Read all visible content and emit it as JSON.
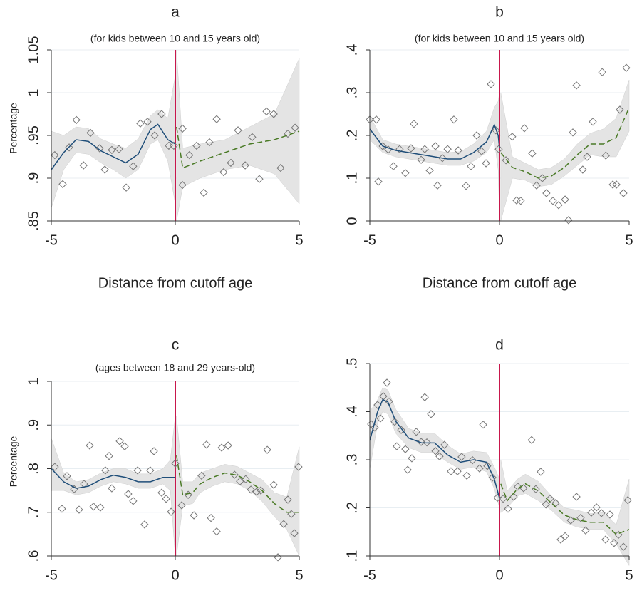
{
  "chart_data": [
    {
      "type": "scatter",
      "title": "a",
      "subtitle": "(for kids between 10 and 15 years old)",
      "ylabel": "Percentage",
      "xlabel": "Distance from cutoff age",
      "xlim": [
        -5,
        5
      ],
      "xticks": [
        -5,
        0,
        5
      ],
      "ylim": [
        0.85,
        1.05
      ],
      "yticks": [
        {
          "value": 0.85,
          "label": ".85"
        },
        {
          "value": 0.9,
          "label": ".9"
        },
        {
          "value": 0.95,
          "label": ".95"
        },
        1,
        1.05
      ],
      "grid": true,
      "cutoff": 0,
      "cutoff_color": "#c8174c",
      "point_color": "#777777",
      "band_color": "#e4e4e4",
      "points": {
        "x": [
          -4.86,
          -4.54,
          -4.28,
          -3.99,
          -3.7,
          -3.42,
          -3.05,
          -2.84,
          -2.56,
          -2.27,
          -1.98,
          -1.7,
          -1.41,
          -1.12,
          -0.83,
          -0.55,
          -0.26,
          -0.06,
          0.29,
          0.29,
          0.57,
          0.86,
          1.15,
          1.38,
          1.67,
          1.95,
          2.24,
          2.53,
          2.82,
          3.1,
          3.39,
          3.68,
          3.97,
          4.25,
          4.54,
          4.83
        ],
        "y": [
          0.927,
          0.893,
          0.936,
          0.968,
          0.915,
          0.953,
          0.935,
          0.91,
          0.933,
          0.934,
          0.889,
          0.914,
          0.964,
          0.966,
          0.95,
          0.975,
          0.938,
          0.938,
          0.958,
          0.892,
          0.927,
          0.938,
          0.883,
          0.942,
          0.969,
          0.907,
          0.918,
          0.956,
          0.915,
          0.948,
          0.899,
          0.978,
          0.975,
          0.912,
          0.952,
          0.959
        ]
      },
      "fits": [
        {
          "color": "#1f4e79",
          "dashed": false,
          "x": [
            -5,
            -4.5,
            -4,
            -3.5,
            -3,
            -2.5,
            -2,
            -1.5,
            -1,
            -0.7,
            -0.3,
            0
          ],
          "y": [
            0.91,
            0.93,
            0.945,
            0.943,
            0.932,
            0.925,
            0.918,
            0.928,
            0.957,
            0.963,
            0.945,
            0.94
          ],
          "lower": [
            0.865,
            0.91,
            0.93,
            0.928,
            0.918,
            0.91,
            0.9,
            0.91,
            0.94,
            0.945,
            0.92,
            0.87
          ],
          "upper": [
            0.955,
            0.95,
            0.96,
            0.958,
            0.946,
            0.94,
            0.935,
            0.946,
            0.973,
            0.98,
            0.97,
            1.02
          ]
        },
        {
          "color": "#4a7a26",
          "dashed": true,
          "x": [
            0.05,
            0.3,
            1,
            2,
            3,
            4,
            5
          ],
          "y": [
            0.96,
            0.912,
            0.92,
            0.93,
            0.94,
            0.945,
            0.955
          ],
          "lower": [
            0.85,
            0.89,
            0.9,
            0.91,
            0.915,
            0.905,
            0.87
          ],
          "upper": [
            1.05,
            0.935,
            0.94,
            0.945,
            0.96,
            0.975,
            1.04
          ]
        }
      ]
    },
    {
      "type": "scatter",
      "title": "b",
      "subtitle": "(for kids between 10 and 15 years old)",
      "xlabel": "Distance from cutoff age",
      "xlim": [
        -5,
        5
      ],
      "xticks": [
        -5,
        0,
        5
      ],
      "ylim": [
        0,
        0.4
      ],
      "yticks": [
        0,
        {
          "value": 0.1,
          "label": ".1"
        },
        {
          "value": 0.2,
          "label": ".2"
        },
        {
          "value": 0.3,
          "label": ".3"
        },
        {
          "value": 0.4,
          "label": ".4"
        }
      ],
      "grid": true,
      "cutoff": 0,
      "cutoff_color": "#c8174c",
      "point_color": "#777777",
      "band_color": "#e4e4e4",
      "points": {
        "x": [
          -5,
          -4.75,
          -4.67,
          -4.5,
          -4.29,
          -4.09,
          -3.85,
          -3.63,
          -3.41,
          -3.3,
          -3.02,
          -2.88,
          -2.69,
          -2.47,
          -2.39,
          -2.2,
          -2,
          -1.76,
          -1.59,
          -1.29,
          -1.1,
          -0.88,
          -0.69,
          -0.52,
          -0.33,
          -0.14,
          -0.03,
          0.25,
          0.49,
          0.66,
          0.82,
          0.96,
          1.26,
          1.43,
          1.65,
          1.81,
          2.06,
          2.28,
          2.53,
          2.66,
          2.83,
          2.97,
          3.21,
          3.38,
          3.6,
          3.96,
          4.1,
          4.37,
          4.51,
          4.64,
          4.78,
          4.89
        ],
        "y": [
          0.237,
          0.237,
          0.092,
          0.175,
          0.167,
          0.128,
          0.168,
          0.112,
          0.17,
          0.227,
          0.143,
          0.168,
          0.118,
          0.175,
          0.083,
          0.147,
          0.168,
          0.237,
          0.165,
          0.082,
          0.128,
          0.2,
          0.163,
          0.135,
          0.32,
          0.212,
          0.168,
          0.142,
          0.197,
          0.048,
          0.047,
          0.217,
          0.158,
          0.083,
          0.1,
          0.065,
          0.047,
          0.037,
          0.05,
          0.002,
          0.207,
          0.317,
          0.12,
          0.15,
          0.232,
          0.348,
          0.153,
          0.085,
          0.085,
          0.26,
          0.065,
          0.358
        ]
      },
      "fits": [
        {
          "color": "#1f4e79",
          "dashed": false,
          "x": [
            -5,
            -4.5,
            -4,
            -3,
            -2,
            -1.5,
            -1,
            -0.5,
            -0.2,
            -0.05,
            0
          ],
          "y": [
            0.215,
            0.175,
            0.165,
            0.155,
            0.145,
            0.145,
            0.16,
            0.185,
            0.225,
            0.2,
            0.17
          ],
          "lower": [
            0.19,
            0.16,
            0.15,
            0.14,
            0.13,
            0.13,
            0.14,
            0.16,
            0.19,
            0.12,
            0.01
          ],
          "upper": [
            0.245,
            0.19,
            0.18,
            0.17,
            0.16,
            0.162,
            0.18,
            0.21,
            0.265,
            0.28,
            0.3
          ]
        },
        {
          "color": "#4a7a26",
          "dashed": true,
          "x": [
            0.05,
            0.5,
            1,
            1.5,
            2,
            2.5,
            3,
            3.5,
            4,
            4.5,
            5
          ],
          "y": [
            0.16,
            0.125,
            0.115,
            0.1,
            0.105,
            0.125,
            0.155,
            0.18,
            0.18,
            0.195,
            0.265
          ],
          "lower": [
            0.0,
            0.1,
            0.095,
            0.08,
            0.085,
            0.105,
            0.13,
            0.155,
            0.15,
            0.15,
            0.21
          ],
          "upper": [
            0.3,
            0.15,
            0.135,
            0.12,
            0.125,
            0.145,
            0.18,
            0.205,
            0.215,
            0.24,
            0.33
          ]
        }
      ]
    },
    {
      "type": "scatter",
      "title": "c",
      "subtitle": "(ages between 18 and 29 years-old)",
      "ylabel": "Percentage",
      "xlim": [
        -5,
        5
      ],
      "xticks": [
        -5,
        0,
        5
      ],
      "ylim": [
        0.6,
        1
      ],
      "yticks": [
        {
          "value": 0.6,
          "label": ".6"
        },
        {
          "value": 0.7,
          "label": ".7"
        },
        {
          "value": 0.8,
          "label": ".8"
        },
        {
          "value": 0.9,
          "label": ".9"
        },
        1
      ],
      "grid": true,
      "cutoff": 0,
      "cutoff_color": "#c8174c",
      "point_color": "#777777",
      "band_color": "#e4e4e4",
      "points": {
        "x": [
          -4.86,
          -4.57,
          -4.37,
          -4.08,
          -3.88,
          -3.68,
          -3.45,
          -3.3,
          -3.02,
          -2.82,
          -2.67,
          -2.56,
          -2.24,
          -2.04,
          -1.9,
          -1.7,
          -1.52,
          -1.24,
          -1.01,
          -0.86,
          -0.55,
          -0.37,
          -0.17,
          0,
          0.26,
          0.52,
          0.75,
          1.06,
          1.26,
          1.44,
          1.67,
          1.87,
          2.13,
          2.39,
          2.61,
          2.84,
          3.05,
          3.28,
          3.45,
          3.71,
          3.97,
          4.14,
          4.37,
          4.54,
          4.68,
          4.8,
          4.97
        ],
        "y": [
          0.804,
          0.708,
          0.783,
          0.753,
          0.706,
          0.765,
          0.853,
          0.713,
          0.711,
          0.796,
          0.829,
          0.755,
          0.863,
          0.851,
          0.742,
          0.726,
          0.796,
          0.672,
          0.796,
          0.84,
          0.745,
          0.731,
          0.701,
          0.812,
          0.716,
          0.74,
          0.693,
          0.784,
          0.855,
          0.687,
          0.656,
          0.848,
          0.853,
          0.786,
          0.771,
          0.776,
          0.752,
          0.747,
          0.75,
          0.843,
          0.763,
          0.597,
          0.673,
          0.729,
          0.696,
          0.652,
          0.804
        ]
      },
      "fits": [
        {
          "color": "#1f4e79",
          "dashed": false,
          "x": [
            -5,
            -4.5,
            -4,
            -3.5,
            -3,
            -2.5,
            -2,
            -1.5,
            -1,
            -0.5,
            -0.2,
            0
          ],
          "y": [
            0.8,
            0.77,
            0.755,
            0.76,
            0.775,
            0.785,
            0.78,
            0.77,
            0.77,
            0.78,
            0.78,
            0.78
          ],
          "lower": [
            0.75,
            0.75,
            0.74,
            0.745,
            0.76,
            0.77,
            0.765,
            0.755,
            0.755,
            0.765,
            0.75,
            0.6
          ],
          "upper": [
            0.87,
            0.79,
            0.77,
            0.775,
            0.79,
            0.8,
            0.8,
            0.788,
            0.788,
            0.8,
            0.82,
            0.92
          ]
        },
        {
          "color": "#4a7a26",
          "dashed": true,
          "x": [
            0.05,
            0.3,
            0.7,
            1,
            1.5,
            2,
            2.5,
            3,
            3.5,
            4,
            4.5,
            5
          ],
          "y": [
            0.83,
            0.74,
            0.745,
            0.765,
            0.78,
            0.79,
            0.785,
            0.77,
            0.75,
            0.72,
            0.7,
            0.7
          ],
          "lower": [
            0.6,
            0.715,
            0.72,
            0.745,
            0.76,
            0.77,
            0.765,
            0.75,
            0.725,
            0.69,
            0.66,
            0.6
          ],
          "upper": [
            0.92,
            0.77,
            0.77,
            0.79,
            0.8,
            0.81,
            0.805,
            0.79,
            0.775,
            0.745,
            0.735,
            0.85
          ]
        }
      ]
    },
    {
      "type": "scatter",
      "title": "d",
      "xlim": [
        -5,
        5
      ],
      "xticks": [
        -5,
        0,
        5
      ],
      "ylim": [
        0.1,
        0.5
      ],
      "yticks": [
        {
          "value": 0.1,
          "label": ".1"
        },
        {
          "value": 0.2,
          "label": ".2"
        },
        {
          "value": 0.3,
          "label": ".3"
        },
        {
          "value": 0.4,
          "label": ".4"
        },
        {
          "value": 0.5,
          "label": ".5"
        }
      ],
      "grid": true,
      "cutoff": 0,
      "cutoff_color": "#c8174c",
      "point_color": "#777777",
      "band_color": "#e4e4e4",
      "points": {
        "x": [
          -4.95,
          -4.81,
          -4.7,
          -4.59,
          -4.48,
          -4.34,
          -4.26,
          -4.04,
          -3.96,
          -3.79,
          -3.63,
          -3.54,
          -3.38,
          -3.21,
          -3.02,
          -2.88,
          -2.8,
          -2.64,
          -2.47,
          -2.31,
          -2.12,
          -1.87,
          -1.62,
          -1.46,
          -1.26,
          -1.04,
          -0.77,
          -0.63,
          -0.47,
          -0.27,
          -0.08,
          0.14,
          0.33,
          0.55,
          0.71,
          0.93,
          1.24,
          1.4,
          1.59,
          1.79,
          1.95,
          2.17,
          2.36,
          2.53,
          2.75,
          2.97,
          3.13,
          3.32,
          3.54,
          3.74,
          3.93,
          4.09,
          4.26,
          4.42,
          4.59,
          4.78,
          4.95
        ],
        "y": [
          0.374,
          0.367,
          0.414,
          0.386,
          0.432,
          0.46,
          0.421,
          0.379,
          0.328,
          0.362,
          0.322,
          0.279,
          0.303,
          0.358,
          0.337,
          0.43,
          0.336,
          0.395,
          0.318,
          0.307,
          0.331,
          0.276,
          0.276,
          0.306,
          0.267,
          0.299,
          0.282,
          0.373,
          0.287,
          0.263,
          0.221,
          0.219,
          0.198,
          0.223,
          0.244,
          0.241,
          0.341,
          0.239,
          0.275,
          0.207,
          0.219,
          0.21,
          0.134,
          0.141,
          0.174,
          0.223,
          0.179,
          0.153,
          0.19,
          0.201,
          0.189,
          0.134,
          0.186,
          0.127,
          0.144,
          0.119,
          0.216
        ]
      },
      "fits": [
        {
          "color": "#1f4e79",
          "dashed": false,
          "x": [
            -5,
            -4.7,
            -4.5,
            -4.3,
            -4,
            -3.5,
            -3,
            -2.5,
            -2,
            -1.5,
            -1,
            -0.5,
            -0.2,
            0
          ],
          "y": [
            0.34,
            0.4,
            0.425,
            0.42,
            0.38,
            0.345,
            0.335,
            0.335,
            0.31,
            0.295,
            0.3,
            0.295,
            0.26,
            0.22
          ],
          "lower": [
            0.28,
            0.375,
            0.4,
            0.395,
            0.355,
            0.325,
            0.315,
            0.315,
            0.295,
            0.28,
            0.285,
            0.275,
            0.24,
            0.2
          ],
          "upper": [
            0.4,
            0.425,
            0.45,
            0.445,
            0.405,
            0.365,
            0.355,
            0.355,
            0.33,
            0.312,
            0.318,
            0.315,
            0.285,
            0.26
          ]
        },
        {
          "color": "#4a7a26",
          "dashed": true,
          "x": [
            0.05,
            0.3,
            0.7,
            1,
            1.5,
            2,
            2.5,
            3,
            3.5,
            4,
            4.5,
            5
          ],
          "y": [
            0.25,
            0.215,
            0.24,
            0.25,
            0.235,
            0.21,
            0.185,
            0.175,
            0.17,
            0.17,
            0.145,
            0.155
          ],
          "lower": [
            0.19,
            0.2,
            0.225,
            0.23,
            0.215,
            0.195,
            0.17,
            0.16,
            0.155,
            0.155,
            0.125,
            0.08
          ],
          "upper": [
            0.3,
            0.235,
            0.26,
            0.27,
            0.255,
            0.225,
            0.2,
            0.195,
            0.188,
            0.19,
            0.165,
            0.26
          ]
        }
      ]
    }
  ]
}
